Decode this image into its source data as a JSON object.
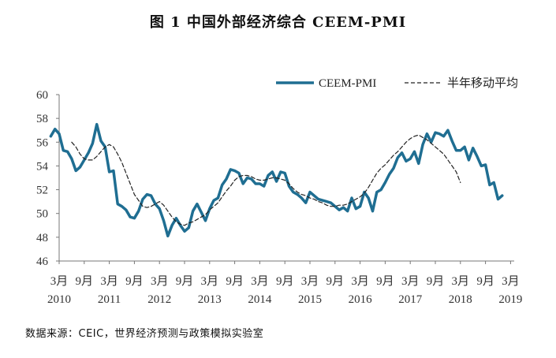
{
  "title": "图 1 中国外部经济综合 CEEM-PMI",
  "source": "数据来源：CEIC，世界经济预测与政策模拟实验室",
  "chart_data": {
    "type": "line",
    "title": "图 1 中国外部经济综合 CEEM-PMI",
    "xlabel": "",
    "ylabel": "",
    "ylim": [
      46,
      60
    ],
    "yticks": [
      "60",
      "58",
      "56",
      "54",
      "52",
      "50",
      "48",
      "46"
    ],
    "xticks": [
      {
        "month": "3月",
        "year": "2010"
      },
      {
        "month": "9月",
        "year": ""
      },
      {
        "month": "3月",
        "year": "2011"
      },
      {
        "month": "9月",
        "year": ""
      },
      {
        "month": "3月",
        "year": "2012"
      },
      {
        "month": "9月",
        "year": ""
      },
      {
        "month": "3月",
        "year": "2013"
      },
      {
        "month": "9月",
        "year": ""
      },
      {
        "month": "3月",
        "year": "2014"
      },
      {
        "month": "9月",
        "year": ""
      },
      {
        "month": "3月",
        "year": "2015"
      },
      {
        "month": "9月",
        "year": ""
      },
      {
        "month": "3月",
        "year": "2016"
      },
      {
        "month": "9月",
        "year": ""
      },
      {
        "month": "3月",
        "year": "2017"
      },
      {
        "month": "9月",
        "year": ""
      },
      {
        "month": "3月",
        "year": "2018"
      },
      {
        "month": "9月",
        "year": ""
      },
      {
        "month": "3月",
        "year": "2019"
      }
    ],
    "legend_position": "top-right",
    "grid": false,
    "series": [
      {
        "name": "CEEM-PMI",
        "color": "#1f6e92",
        "style": "solid",
        "start": "2010-01",
        "values": [
          56.5,
          57.1,
          56.7,
          55.3,
          55.2,
          54.6,
          53.6,
          53.9,
          54.5,
          55.1,
          55.9,
          57.5,
          56.1,
          55.6,
          53.5,
          53.6,
          50.8,
          50.6,
          50.3,
          49.7,
          49.6,
          50.2,
          51.2,
          51.6,
          51.5,
          50.8,
          50.4,
          49.4,
          48.1,
          49.0,
          49.6,
          49.0,
          48.5,
          48.8,
          50.2,
          50.8,
          50.1,
          49.4,
          50.4,
          51.1,
          51.3,
          52.4,
          52.9,
          53.7,
          53.6,
          53.4,
          52.5,
          53.0,
          52.9,
          52.5,
          52.5,
          52.3,
          53.2,
          53.5,
          52.7,
          53.5,
          53.4,
          52.3,
          51.8,
          51.6,
          51.3,
          50.9,
          51.8,
          51.5,
          51.2,
          51.1,
          51.0,
          50.9,
          50.6,
          50.3,
          50.5,
          50.2,
          51.3,
          50.4,
          50.6,
          51.8,
          51.3,
          50.2,
          51.8,
          52.0,
          52.6,
          53.3,
          53.8,
          54.7,
          55.1,
          54.4,
          54.6,
          55.2,
          54.2,
          55.8,
          56.7,
          56.0,
          56.8,
          56.7,
          56.5,
          57.0,
          56.1,
          55.3,
          55.3,
          55.6,
          54.5,
          55.5,
          54.8,
          54.0,
          54.1,
          52.4,
          52.6,
          51.2,
          51.5
        ]
      },
      {
        "name": "半年移动平均",
        "color": "#222222",
        "style": "dashed",
        "start": "2010-06",
        "values": [
          56.0,
          55.6,
          55.0,
          54.6,
          54.5,
          54.5,
          54.8,
          55.2,
          55.6,
          55.8,
          55.6,
          55.0,
          54.3,
          53.4,
          52.5,
          51.6,
          51.1,
          50.6,
          50.5,
          50.6,
          50.8,
          51.0,
          50.7,
          50.2,
          49.7,
          49.3,
          49.1,
          49.0,
          49.2,
          49.3,
          49.5,
          49.7,
          49.9,
          50.3,
          50.6,
          50.9,
          51.4,
          51.9,
          52.3,
          52.8,
          53.1,
          53.2,
          53.2,
          53.1,
          52.9,
          52.8,
          52.8,
          52.9,
          53.0,
          53.0,
          52.9,
          52.8,
          52.5,
          52.1,
          51.8,
          51.6,
          51.5,
          51.3,
          51.2,
          51.0,
          50.9,
          50.7,
          50.6,
          50.6,
          50.7,
          50.7,
          50.8,
          51.0,
          51.2,
          51.4,
          51.7,
          52.2,
          52.8,
          53.4,
          53.8,
          54.1,
          54.5,
          54.9,
          55.2,
          55.6,
          56.0,
          56.3,
          56.5,
          56.6,
          56.4,
          56.2,
          55.9,
          55.6,
          55.3,
          55.0,
          54.5,
          54.0,
          53.5,
          52.6
        ]
      }
    ]
  }
}
